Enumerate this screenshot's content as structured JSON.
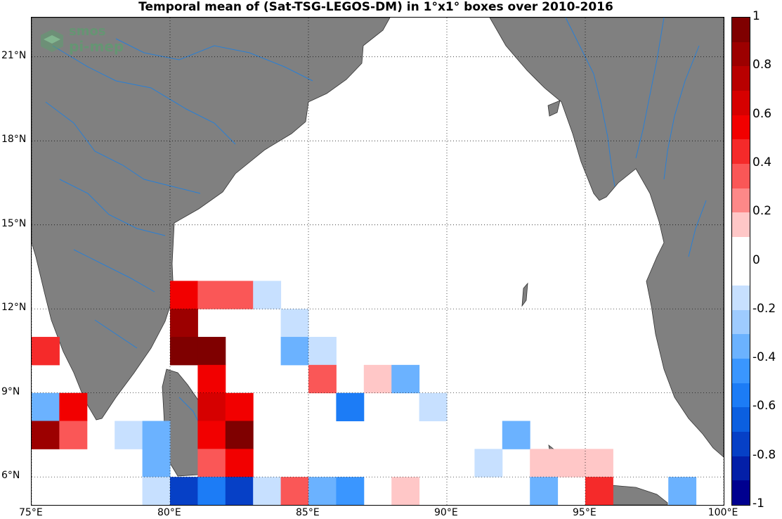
{
  "title": "Temporal mean of (Sat-TSG-LEGOS-DM) in 1°x1° boxes over 2010-2016",
  "logo": {
    "line1": "smos",
    "line2": "pi-mep"
  },
  "lon_labels": [
    "75°E",
    "80°E",
    "85°E",
    "90°E",
    "95°E",
    "100°E"
  ],
  "lat_labels": [
    "21°N",
    "18°N",
    "15°N",
    "12°N",
    "9°N",
    "6°N"
  ],
  "colorbar": {
    "labels": [
      "1",
      "0.8",
      "0.6",
      "0.4",
      "0.2",
      "0",
      "-0.2",
      "-0.4",
      "-0.6",
      "-0.8",
      "-1"
    ],
    "range": [
      -1,
      1
    ],
    "step": 0.1,
    "colors_top_to_bottom": [
      "#7f0000",
      "#9c0000",
      "#b80000",
      "#d60000",
      "#f20000",
      "#f52a2a",
      "#fa5757",
      "#fd8888",
      "#ffc7c7",
      "#ffffff",
      "#ffffff",
      "#c7e0ff",
      "#9ecbff",
      "#6bb2ff",
      "#3a96ff",
      "#1c7cf6",
      "#0b5fe0",
      "#0640c6",
      "#031fa8",
      "#00008f"
    ]
  },
  "map": {
    "lon_range": [
      75,
      100
    ],
    "lat_range": [
      5,
      22.4
    ],
    "land_color": "#808080",
    "river_color": "#2a7fd4",
    "grid": "dotted",
    "land_regions": [
      "India",
      "Sri Lanka",
      "Bangladesh",
      "Myanmar",
      "Andaman Islands",
      "Sumatra"
    ]
  },
  "chart_data": {
    "type": "heatmap",
    "title": "Temporal mean of (Sat-TSG-LEGOS-DM) in 1°x1° boxes over 2010-2016",
    "cell_size_deg": 1,
    "value_range": [
      -1,
      1
    ],
    "cells": [
      {
        "lon": 80.5,
        "lat": 12.5,
        "value": 0.55
      },
      {
        "lon": 81.5,
        "lat": 12.5,
        "value": 0.3
      },
      {
        "lon": 82.5,
        "lat": 12.5,
        "value": 0.3
      },
      {
        "lon": 83.5,
        "lat": 12.5,
        "value": -0.15
      },
      {
        "lon": 80.5,
        "lat": 11.5,
        "value": 0.85
      },
      {
        "lon": 84.5,
        "lat": 11.5,
        "value": -0.15
      },
      {
        "lon": 75.5,
        "lat": 10.5,
        "value": 0.45
      },
      {
        "lon": 80.5,
        "lat": 10.5,
        "value": 0.95
      },
      {
        "lon": 81.5,
        "lat": 10.5,
        "value": 0.95
      },
      {
        "lon": 84.5,
        "lat": 10.5,
        "value": -0.3
      },
      {
        "lon": 85.5,
        "lat": 10.5,
        "value": -0.15
      },
      {
        "lon": 81.5,
        "lat": 9.5,
        "value": 0.55
      },
      {
        "lon": 85.5,
        "lat": 9.5,
        "value": 0.35
      },
      {
        "lon": 87.5,
        "lat": 9.5,
        "value": 0.15
      },
      {
        "lon": 88.5,
        "lat": 9.5,
        "value": -0.4
      },
      {
        "lon": 75.5,
        "lat": 8.5,
        "value": -0.4
      },
      {
        "lon": 76.5,
        "lat": 8.5,
        "value": 0.6
      },
      {
        "lon": 81.5,
        "lat": 8.5,
        "value": 0.65
      },
      {
        "lon": 82.5,
        "lat": 8.5,
        "value": 0.6
      },
      {
        "lon": 86.5,
        "lat": 8.5,
        "value": -0.5
      },
      {
        "lon": 89.5,
        "lat": 8.5,
        "value": -0.15
      },
      {
        "lon": 75.5,
        "lat": 7.5,
        "value": 0.85
      },
      {
        "lon": 76.5,
        "lat": 7.5,
        "value": 0.3
      },
      {
        "lon": 78.5,
        "lat": 7.5,
        "value": -0.15
      },
      {
        "lon": 79.5,
        "lat": 7.5,
        "value": -0.4
      },
      {
        "lon": 81.5,
        "lat": 7.5,
        "value": 0.6
      },
      {
        "lon": 82.5,
        "lat": 7.5,
        "value": 0.9
      },
      {
        "lon": 92.5,
        "lat": 7.5,
        "value": -0.3
      },
      {
        "lon": 79.5,
        "lat": 6.5,
        "value": -0.4
      },
      {
        "lon": 81.5,
        "lat": 6.5,
        "value": 0.35
      },
      {
        "lon": 82.5,
        "lat": 6.5,
        "value": 0.6
      },
      {
        "lon": 91.5,
        "lat": 6.5,
        "value": -0.15
      },
      {
        "lon": 93.5,
        "lat": 6.5,
        "value": 0.15
      },
      {
        "lon": 94.5,
        "lat": 6.5,
        "value": 0.15
      },
      {
        "lon": 95.5,
        "lat": 6.5,
        "value": 0.15
      },
      {
        "lon": 79.5,
        "lat": 5.5,
        "value": -0.15
      },
      {
        "lon": 80.5,
        "lat": 5.5,
        "value": -0.75
      },
      {
        "lon": 81.5,
        "lat": 5.5,
        "value": -0.55
      },
      {
        "lon": 82.5,
        "lat": 5.5,
        "value": -0.75
      },
      {
        "lon": 83.5,
        "lat": 5.5,
        "value": -0.15
      },
      {
        "lon": 84.5,
        "lat": 5.5,
        "value": 0.35
      },
      {
        "lon": 85.5,
        "lat": 5.5,
        "value": -0.4
      },
      {
        "lon": 86.5,
        "lat": 5.5,
        "value": -0.45
      },
      {
        "lon": 88.5,
        "lat": 5.5,
        "value": 0.15
      },
      {
        "lon": 93.5,
        "lat": 5.5,
        "value": -0.4
      },
      {
        "lon": 95.5,
        "lat": 5.5,
        "value": 0.5
      },
      {
        "lon": 98.5,
        "lat": 5.5,
        "value": -0.4
      }
    ]
  }
}
